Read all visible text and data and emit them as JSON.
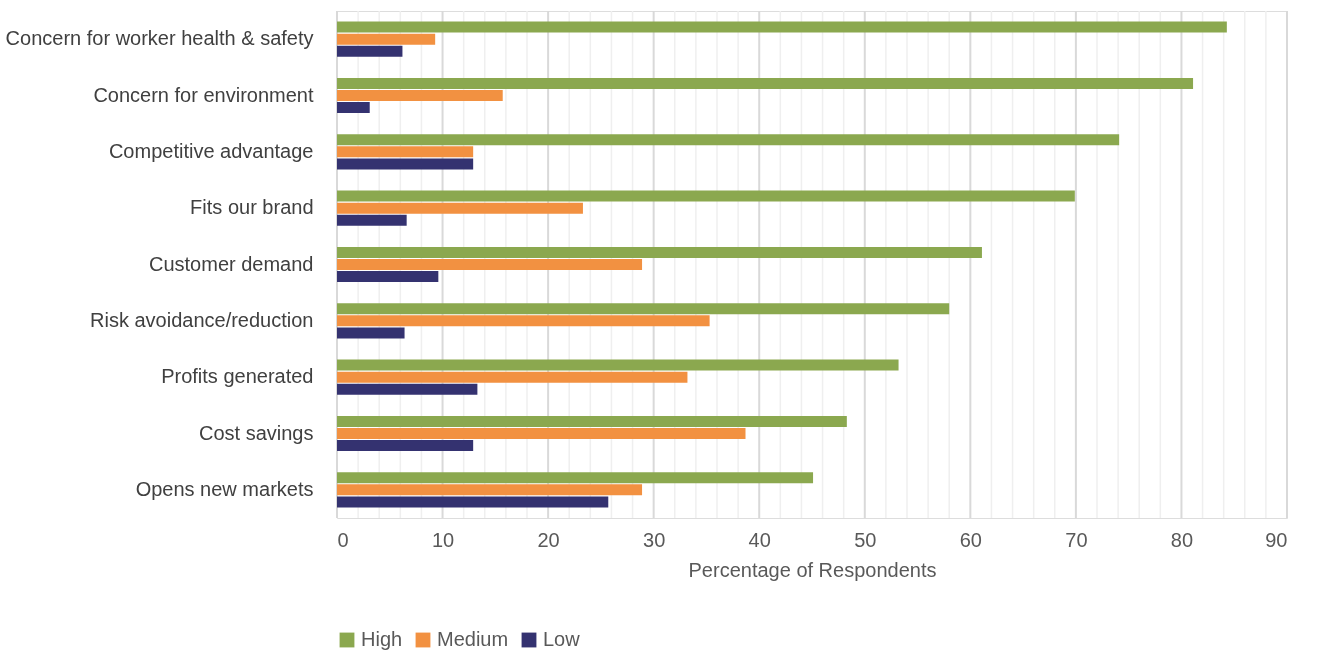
{
  "chart_data": {
    "type": "bar",
    "orientation": "horizontal",
    "xlabel": "Percentage of Respondents",
    "categories": [
      "Concern for worker health & safety",
      "Concern for environment",
      "Competitive advantage",
      "Fits our brand",
      "Customer demand",
      "Risk avoidance/reduction",
      "Profits generated",
      "Cost savings",
      "Opens new markets"
    ],
    "series": [
      {
        "name": "High",
        "color": "#8ba84f",
        "values": [
          84.3,
          81.1,
          74.1,
          69.9,
          61.1,
          58.0,
          53.2,
          48.3,
          45.1
        ]
      },
      {
        "name": "Medium",
        "color": "#f29141",
        "values": [
          9.3,
          15.7,
          12.9,
          23.3,
          28.9,
          35.3,
          33.2,
          38.7,
          28.9
        ]
      },
      {
        "name": "Low",
        "color": "#343270",
        "values": [
          6.2,
          3.1,
          12.9,
          6.6,
          9.6,
          6.4,
          13.3,
          12.9,
          25.7
        ]
      }
    ],
    "xlim": [
      0,
      90
    ],
    "xticks": [
      0,
      10,
      20,
      30,
      40,
      50,
      60,
      70,
      80,
      90
    ],
    "grid": "x",
    "legend": "bottom"
  }
}
